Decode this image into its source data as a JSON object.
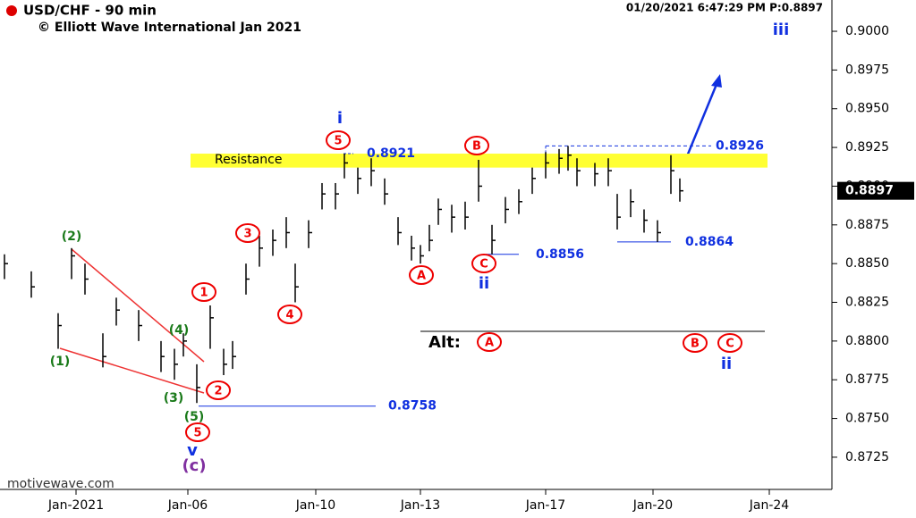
{
  "chart_data": {
    "type": "ohlc",
    "title": "USD/CHF - 90 min",
    "subtitle": "© Elliott Wave International Jan 2021",
    "timestamp": "01/20/2021 6:47:29 PM  P:0.8897",
    "watermark": "motivewave.com",
    "x": [
      0,
      3,
      6,
      7.5,
      9,
      11,
      12.5,
      15,
      17.5,
      19,
      20,
      21.5,
      23,
      24.5,
      25.5,
      27,
      28.5,
      30,
      31.5,
      32.5,
      34,
      35.5,
      37,
      38,
      39.5,
      41,
      42.5,
      44,
      45.5,
      46.5,
      47.5,
      48.5,
      50,
      51.5,
      53,
      54.5,
      56,
      57.5,
      59,
      60.5,
      62,
      63,
      64,
      66,
      67.5,
      68.5,
      70,
      71.5,
      73,
      74.5,
      75.5
    ],
    "high": [
      0.8856,
      0.8845,
      0.8818,
      0.886,
      0.885,
      0.8805,
      0.8828,
      0.882,
      0.88,
      0.8795,
      0.8805,
      0.8785,
      0.8823,
      0.8795,
      0.88,
      0.885,
      0.8868,
      0.8872,
      0.888,
      0.885,
      0.8878,
      0.8902,
      0.8902,
      0.8921,
      0.8912,
      0.8918,
      0.8905,
      0.888,
      0.8868,
      0.8862,
      0.8875,
      0.8892,
      0.8888,
      0.889,
      0.8917,
      0.8875,
      0.8893,
      0.8898,
      0.8912,
      0.8922,
      0.8924,
      0.8926,
      0.8918,
      0.8915,
      0.8918,
      0.8895,
      0.8898,
      0.8885,
      0.8878,
      0.892,
      0.8905
    ],
    "low": [
      0.884,
      0.8828,
      0.8795,
      0.884,
      0.883,
      0.8783,
      0.881,
      0.88,
      0.878,
      0.8775,
      0.879,
      0.876,
      0.8795,
      0.8778,
      0.8782,
      0.883,
      0.8848,
      0.8855,
      0.886,
      0.8825,
      0.886,
      0.8885,
      0.8885,
      0.8905,
      0.8895,
      0.89,
      0.8888,
      0.8862,
      0.8852,
      0.885,
      0.8858,
      0.8875,
      0.887,
      0.8872,
      0.889,
      0.8856,
      0.8876,
      0.8882,
      0.8895,
      0.8905,
      0.8908,
      0.891,
      0.89,
      0.89,
      0.89,
      0.8872,
      0.888,
      0.887,
      0.8864,
      0.8895,
      0.889
    ],
    "close": [
      0.885,
      0.8835,
      0.881,
      0.8855,
      0.884,
      0.879,
      0.882,
      0.881,
      0.879,
      0.8785,
      0.88,
      0.877,
      0.8815,
      0.8785,
      0.879,
      0.884,
      0.886,
      0.8865,
      0.887,
      0.8835,
      0.887,
      0.8895,
      0.8895,
      0.8915,
      0.8905,
      0.891,
      0.8895,
      0.887,
      0.886,
      0.8855,
      0.8865,
      0.8885,
      0.888,
      0.888,
      0.89,
      0.8865,
      0.8885,
      0.889,
      0.8905,
      0.8915,
      0.8918,
      0.892,
      0.891,
      0.8908,
      0.891,
      0.888,
      0.889,
      0.8878,
      0.887,
      0.891,
      0.8897
    ],
    "last": 0.8897,
    "xlim": [
      0,
      93
    ],
    "xticks": [
      {
        "value": 8,
        "label": "Jan-2021"
      },
      {
        "value": 20.5,
        "label": "Jan-06"
      },
      {
        "value": 34.8,
        "label": "Jan-10"
      },
      {
        "value": 46.5,
        "label": "Jan-13"
      },
      {
        "value": 60.5,
        "label": "Jan-17"
      },
      {
        "value": 72.5,
        "label": "Jan-20"
      },
      {
        "value": 85.5,
        "label": "Jan-24"
      }
    ],
    "ylim": [
      0.87042,
      0.90202
    ],
    "yticks": [
      {
        "value": 0.9,
        "label": "0.9000"
      },
      {
        "value": 0.8975,
        "label": "0.8975"
      },
      {
        "value": 0.895,
        "label": "0.8950"
      },
      {
        "value": 0.8925,
        "label": "0.8925"
      },
      {
        "value": 0.89,
        "label": "0.8900"
      },
      {
        "value": 0.8875,
        "label": "0.8875"
      },
      {
        "value": 0.885,
        "label": "0.8850"
      },
      {
        "value": 0.8825,
        "label": "0.8825"
      },
      {
        "value": 0.88,
        "label": "0.8800"
      },
      {
        "value": 0.8775,
        "label": "0.8775"
      },
      {
        "value": 0.875,
        "label": "0.8750"
      },
      {
        "value": 0.8725,
        "label": "0.8725"
      }
    ],
    "resistance": {
      "label": "Resistance",
      "range": [
        0.8912,
        0.8921
      ]
    },
    "levels": [
      0.8921,
      0.8926,
      0.8856,
      0.8864,
      0.8758
    ],
    "annotations": [
      "i",
      "5",
      "B",
      "A",
      "C",
      "ii",
      "3",
      "4",
      "1",
      "2",
      "(2)",
      "(1)",
      "(4)",
      "(3)",
      "(5)",
      "5",
      "v",
      "(c)",
      "iii",
      "ii",
      "A",
      "B",
      "C",
      "Alt:"
    ]
  }
}
